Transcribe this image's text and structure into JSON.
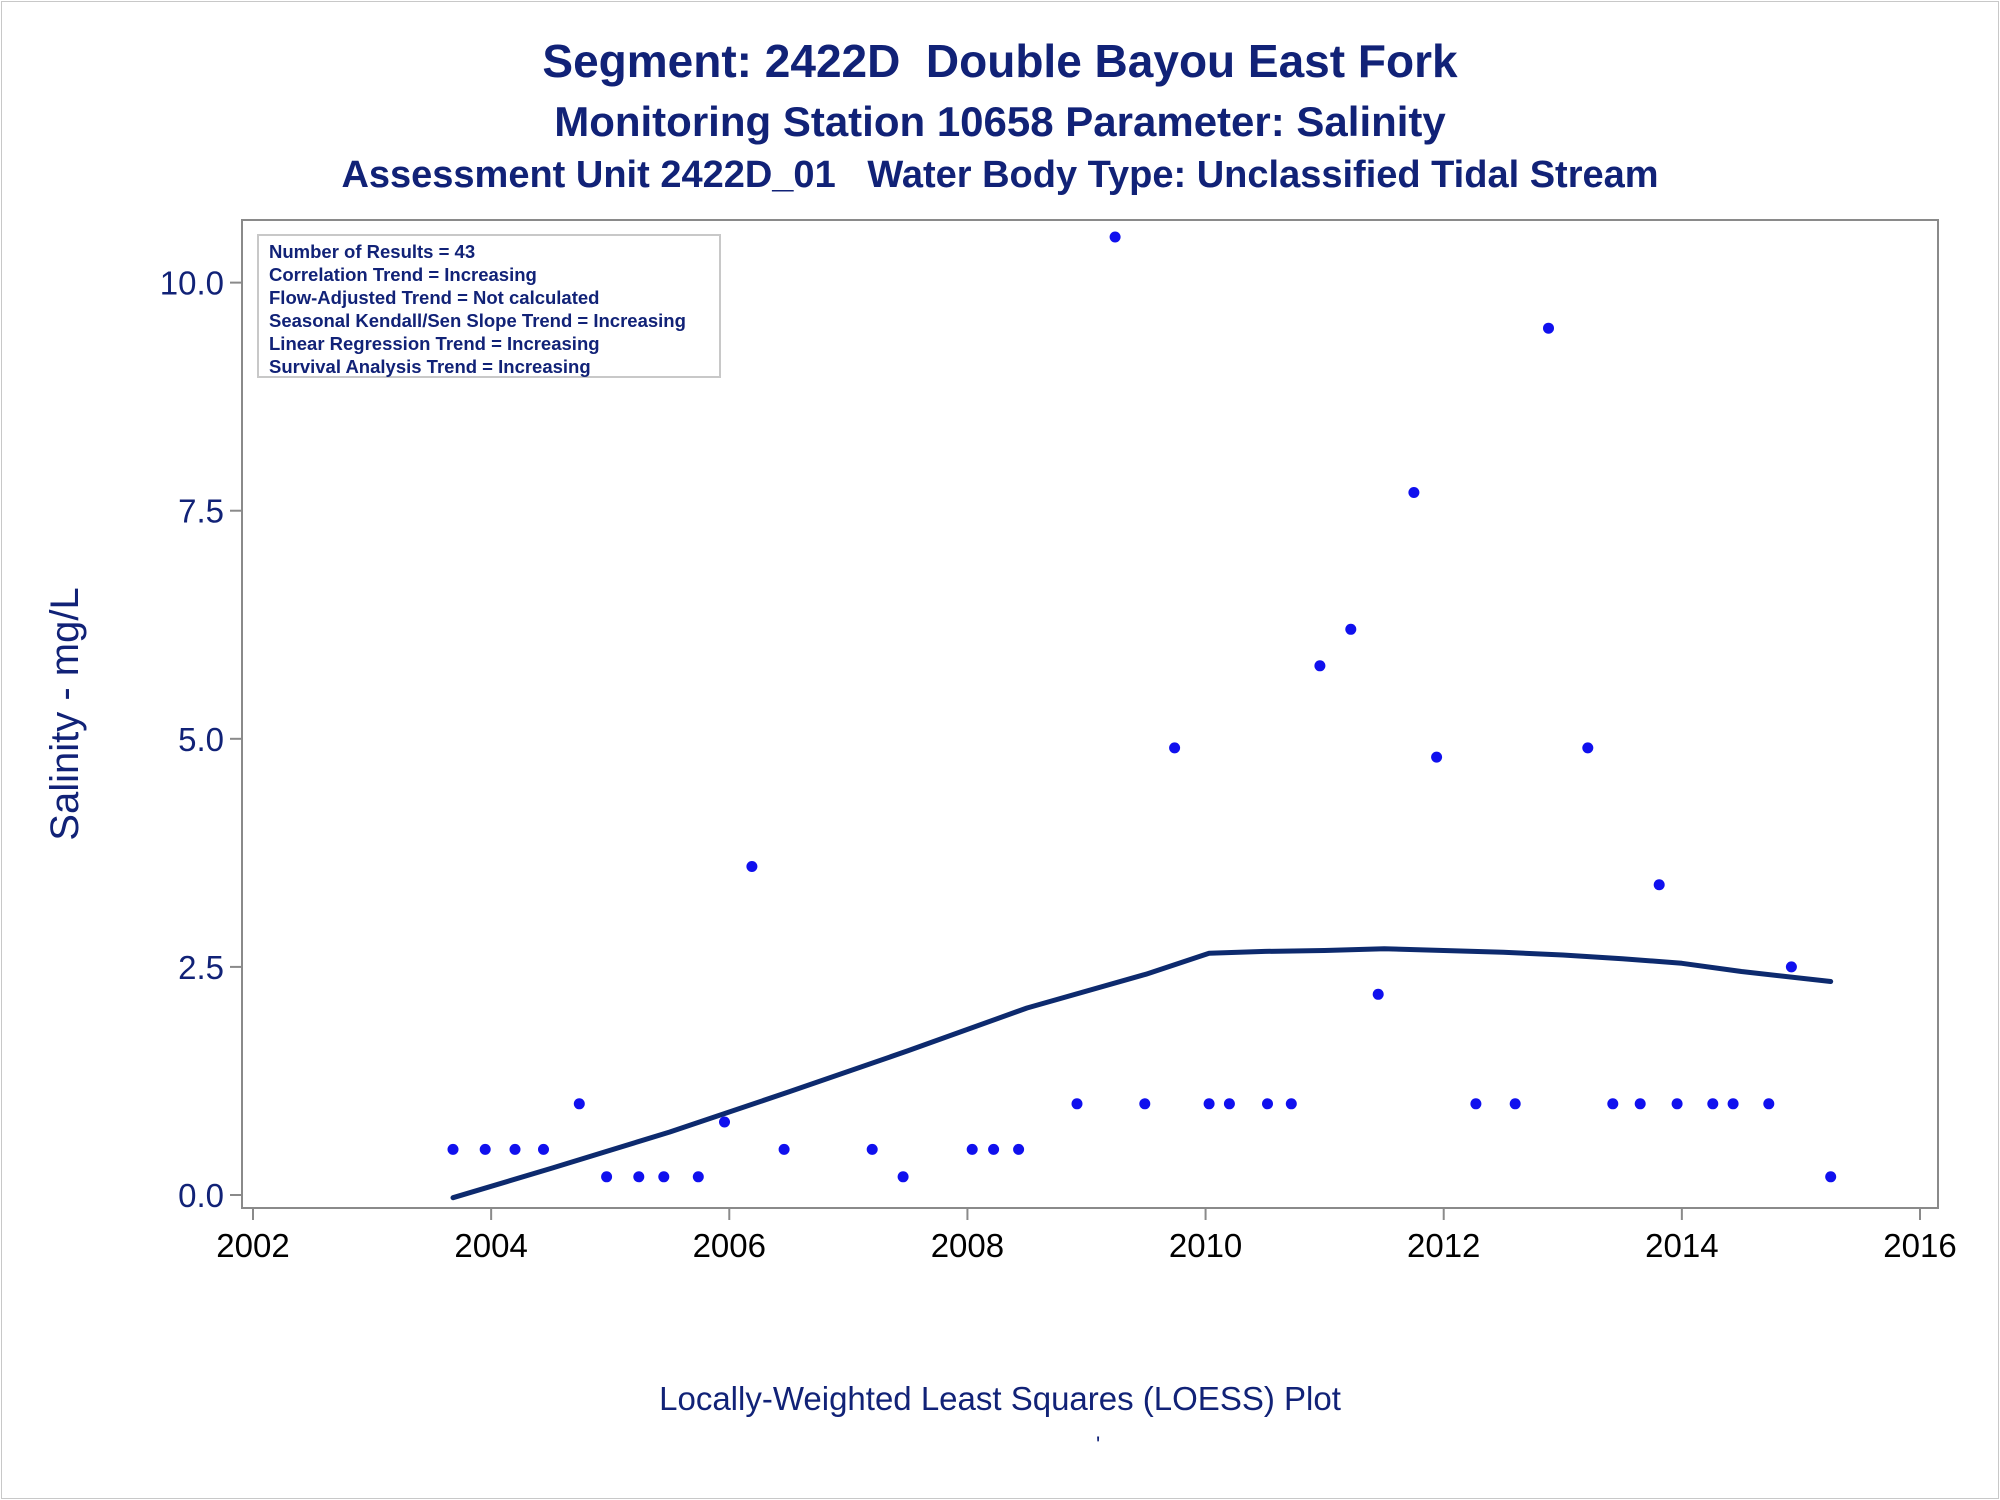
{
  "titles": {
    "line1": "Segment: 2422D  Double Bayou East Fork",
    "line2": "Monitoring Station 10658 Parameter: Salinity",
    "line3": "Assessment Unit 2422D_01   Water Body Type: Unclassified Tidal Stream"
  },
  "footnote": "Locally-Weighted Least Squares (LOESS) Plot",
  "footnote_mark": "'",
  "colors": {
    "title": "#112277",
    "points": "#1010ee",
    "loess": "#0d2a6e",
    "axis": "#8a8a8a"
  },
  "chart_data": {
    "type": "scatter",
    "ylabel": "Salinity - mg/L",
    "xlabel": "",
    "xlim": [
      2002,
      2016
    ],
    "ylim": [
      0,
      10.5
    ],
    "x_ticks": [
      2002,
      2004,
      2006,
      2008,
      2010,
      2012,
      2014,
      2016
    ],
    "y_ticks": [
      0.0,
      2.5,
      5.0,
      7.5,
      10.0
    ],
    "y_tick_labels": [
      "0.0",
      "2.5",
      "5.0",
      "7.5",
      "10.0"
    ],
    "grid": false,
    "legend_placement": "top-left",
    "stats_box": [
      "Number of Results = 43",
      "Correlation Trend = Increasing",
      "Flow-Adjusted Trend = Not calculated",
      "Seasonal Kendall/Sen Slope Trend = Increasing",
      "Linear Regression Trend = Increasing",
      "Survival Analysis Trend = Increasing"
    ],
    "points": [
      {
        "x": 2003.68,
        "y": 0.5
      },
      {
        "x": 2003.95,
        "y": 0.5
      },
      {
        "x": 2004.2,
        "y": 0.5
      },
      {
        "x": 2004.44,
        "y": 0.5
      },
      {
        "x": 2004.74,
        "y": 1.0
      },
      {
        "x": 2004.97,
        "y": 0.2
      },
      {
        "x": 2005.24,
        "y": 0.2
      },
      {
        "x": 2005.45,
        "y": 0.2
      },
      {
        "x": 2005.74,
        "y": 0.2
      },
      {
        "x": 2005.96,
        "y": 0.8
      },
      {
        "x": 2006.19,
        "y": 3.6
      },
      {
        "x": 2006.46,
        "y": 0.5
      },
      {
        "x": 2007.2,
        "y": 0.5
      },
      {
        "x": 2007.46,
        "y": 0.2
      },
      {
        "x": 2008.04,
        "y": 0.5
      },
      {
        "x": 2008.22,
        "y": 0.5
      },
      {
        "x": 2008.43,
        "y": 0.5
      },
      {
        "x": 2008.92,
        "y": 1.0
      },
      {
        "x": 2009.24,
        "y": 10.5
      },
      {
        "x": 2009.49,
        "y": 1.0
      },
      {
        "x": 2009.74,
        "y": 4.9
      },
      {
        "x": 2010.03,
        "y": 1.0
      },
      {
        "x": 2010.2,
        "y": 1.0
      },
      {
        "x": 2010.52,
        "y": 1.0
      },
      {
        "x": 2010.72,
        "y": 1.0
      },
      {
        "x": 2010.96,
        "y": 5.8
      },
      {
        "x": 2011.22,
        "y": 6.2
      },
      {
        "x": 2011.45,
        "y": 2.2
      },
      {
        "x": 2011.75,
        "y": 7.7
      },
      {
        "x": 2011.94,
        "y": 4.8
      },
      {
        "x": 2012.27,
        "y": 1.0
      },
      {
        "x": 2012.6,
        "y": 1.0
      },
      {
        "x": 2012.88,
        "y": 9.5
      },
      {
        "x": 2013.21,
        "y": 4.9
      },
      {
        "x": 2013.42,
        "y": 1.0
      },
      {
        "x": 2013.65,
        "y": 1.0
      },
      {
        "x": 2013.81,
        "y": 3.4
      },
      {
        "x": 2013.96,
        "y": 1.0
      },
      {
        "x": 2014.26,
        "y": 1.0
      },
      {
        "x": 2014.43,
        "y": 1.0
      },
      {
        "x": 2014.73,
        "y": 1.0
      },
      {
        "x": 2014.92,
        "y": 2.5
      },
      {
        "x": 2015.25,
        "y": 0.2
      }
    ],
    "loess": [
      {
        "x": 2003.68,
        "y": -0.03
      },
      {
        "x": 2004.5,
        "y": 0.29
      },
      {
        "x": 2005.5,
        "y": 0.69
      },
      {
        "x": 2006.5,
        "y": 1.13
      },
      {
        "x": 2007.5,
        "y": 1.58
      },
      {
        "x": 2008.5,
        "y": 2.05
      },
      {
        "x": 2009.5,
        "y": 2.42
      },
      {
        "x": 2010.03,
        "y": 2.65
      },
      {
        "x": 2010.5,
        "y": 2.67
      },
      {
        "x": 2011.0,
        "y": 2.68
      },
      {
        "x": 2011.5,
        "y": 2.7
      },
      {
        "x": 2012.0,
        "y": 2.68
      },
      {
        "x": 2012.5,
        "y": 2.66
      },
      {
        "x": 2013.0,
        "y": 2.63
      },
      {
        "x": 2013.5,
        "y": 2.59
      },
      {
        "x": 2014.0,
        "y": 2.54
      },
      {
        "x": 2014.5,
        "y": 2.45
      },
      {
        "x": 2015.25,
        "y": 2.34
      }
    ]
  }
}
